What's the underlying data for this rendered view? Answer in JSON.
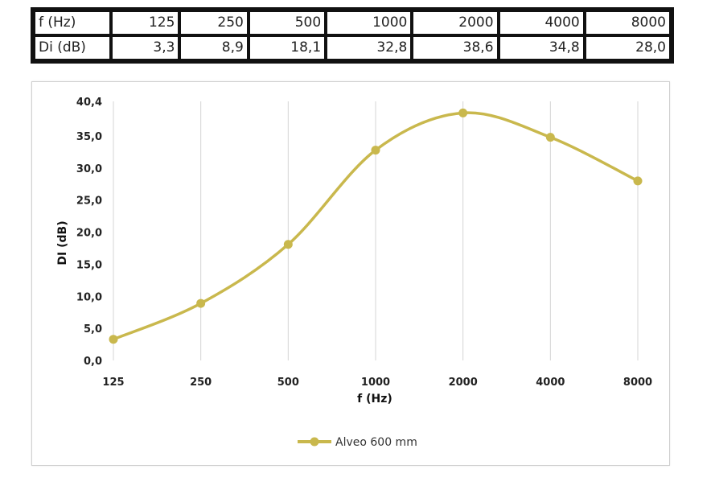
{
  "table": {
    "rows": [
      {
        "label": "f (Hz)",
        "cells": [
          "125",
          "250",
          "500",
          "1000",
          "2000",
          "4000",
          "8000"
        ]
      },
      {
        "label": "Di (dB)",
        "cells": [
          "3,3",
          "8,9",
          "18,1",
          "32,8",
          "38,6",
          "34,8",
          "28,0"
        ]
      }
    ]
  },
  "chart_data": {
    "type": "line",
    "categories": [
      "125",
      "250",
      "500",
      "1000",
      "2000",
      "4000",
      "8000"
    ],
    "series": [
      {
        "name": "Alveo 600 mm",
        "values": [
          3.3,
          8.9,
          18.1,
          32.8,
          38.6,
          34.8,
          28.0
        ],
        "color": "#c9b84d"
      }
    ],
    "xlabel": "f (Hz)",
    "ylabel": "DI (dB)",
    "ylim": [
      0,
      40.4
    ],
    "yticks": [
      "0,0",
      "5,0",
      "10,0",
      "15,0",
      "20,0",
      "25,0",
      "30,0",
      "35,0",
      "40,4"
    ],
    "ytick_values": [
      0,
      5,
      10,
      15,
      20,
      25,
      30,
      35,
      40.4
    ],
    "grid": "vertical",
    "smooth": true,
    "legend_position": "bottom"
  }
}
